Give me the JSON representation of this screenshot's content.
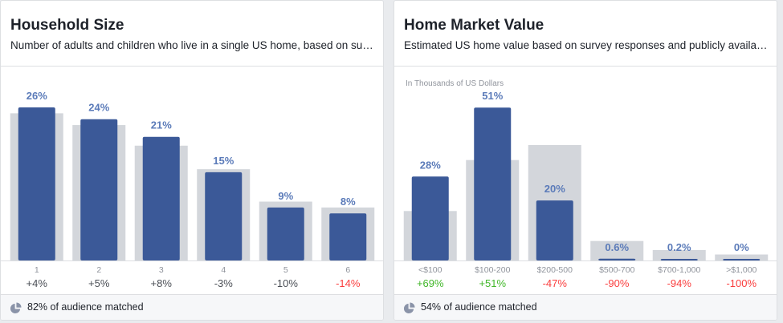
{
  "colors": {
    "bar": "#3b5998",
    "baseline": "#d3d6db",
    "pct_label": "#5b7bb9",
    "positive": "#42b72a",
    "negative": "#fa3e3e",
    "neutral": "#4b4f56",
    "tick": "#90949c"
  },
  "cards": [
    {
      "title": "Household Size",
      "subtitle": "Number of adults and children who live in a single US home, based on survey responses and publicly available data",
      "footer": "82% of audience matched",
      "unit_note": "",
      "chart_data": {
        "type": "bar",
        "categories": [
          "1",
          "2",
          "3",
          "4",
          "5",
          "6"
        ],
        "series": [
          {
            "values": [
              26,
              24,
              21,
              15,
              9,
              8
            ]
          },
          {
            "values": [
              25,
              23,
              19.5,
              15.5,
              10,
              9
            ]
          }
        ],
        "value_labels": [
          "26%",
          "24%",
          "21%",
          "15%",
          "9%",
          "8%"
        ],
        "change_labels": [
          "+4%",
          "+5%",
          "+8%",
          "-3%",
          "-10%",
          "-14%"
        ],
        "change_sentiment": [
          "neutral",
          "neutral",
          "neutral",
          "neutral",
          "neutral",
          "negative"
        ],
        "ylim": [
          0,
          27.5
        ]
      }
    },
    {
      "title": "Home Market Value",
      "subtitle": "Estimated US home value based on survey responses and publicly available data",
      "footer": "54% of audience matched",
      "unit_note": "In Thousands of US Dollars",
      "chart_data": {
        "type": "bar",
        "categories": [
          "<$100",
          "$100-200",
          "$200-500",
          "$500-700",
          "$700-1,000",
          ">$1,000"
        ],
        "series": [
          {
            "values": [
              28,
              51,
              20,
              0.6,
              0.2,
              0
            ]
          },
          {
            "values": [
              16.5,
              33.5,
              38.5,
              6.5,
              3.5,
              2
            ]
          }
        ],
        "value_labels": [
          "28%",
          "51%",
          "20%",
          "0.6%",
          "0.2%",
          "0%"
        ],
        "change_labels": [
          "+69%",
          "+51%",
          "-47%",
          "-90%",
          "-94%",
          "-100%"
        ],
        "change_sentiment": [
          "positive",
          "positive",
          "negative",
          "negative",
          "negative",
          "negative"
        ],
        "ylim": [
          0,
          54
        ]
      }
    }
  ]
}
